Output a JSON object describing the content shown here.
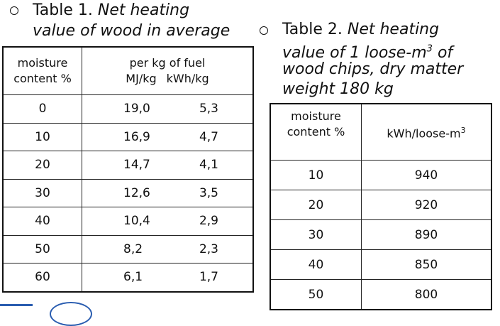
{
  "table1": {
    "caption_prefix": "Table 1.",
    "caption_italic_1": "Net heating",
    "caption_italic_2": "value of wood in average",
    "header": {
      "col1_line1": "moisture",
      "col1_line2": "content %",
      "col2_line1": "per kg of fuel",
      "col2_sub1": "MJ/kg",
      "col2_sub2": "kWh/kg"
    },
    "rows": [
      {
        "moisture": "0",
        "mj": "19,0",
        "kwh": "5,3"
      },
      {
        "moisture": "10",
        "mj": "16,9",
        "kwh": "4,7"
      },
      {
        "moisture": "20",
        "mj": "14,7",
        "kwh": "4,1"
      },
      {
        "moisture": "30",
        "mj": "12,6",
        "kwh": "3,5"
      },
      {
        "moisture": "40",
        "mj": "10,4",
        "kwh": "2,9"
      },
      {
        "moisture": "50",
        "mj": "8,2",
        "kwh": "2,3"
      },
      {
        "moisture": "60",
        "mj": "6,1",
        "kwh": "1,7"
      }
    ]
  },
  "table2": {
    "caption_prefix": "Table 2.",
    "caption_line1": "Net heating",
    "caption_line2a": "value of 1 loose-m",
    "caption_line2_sup": "3",
    "caption_line2b": " of",
    "caption_line3": "wood chips, dry matter",
    "caption_line4": "weight 180 kg",
    "header": {
      "col1_line1": "moisture",
      "col1_line2": "content %",
      "col2": "kWh/loose-m",
      "col2_sup": "3"
    },
    "rows": [
      {
        "moisture": "10",
        "value": "940"
      },
      {
        "moisture": "20",
        "value": "920"
      },
      {
        "moisture": "30",
        "value": "890"
      },
      {
        "moisture": "40",
        "value": "850"
      },
      {
        "moisture": "50",
        "value": "800"
      }
    ]
  }
}
